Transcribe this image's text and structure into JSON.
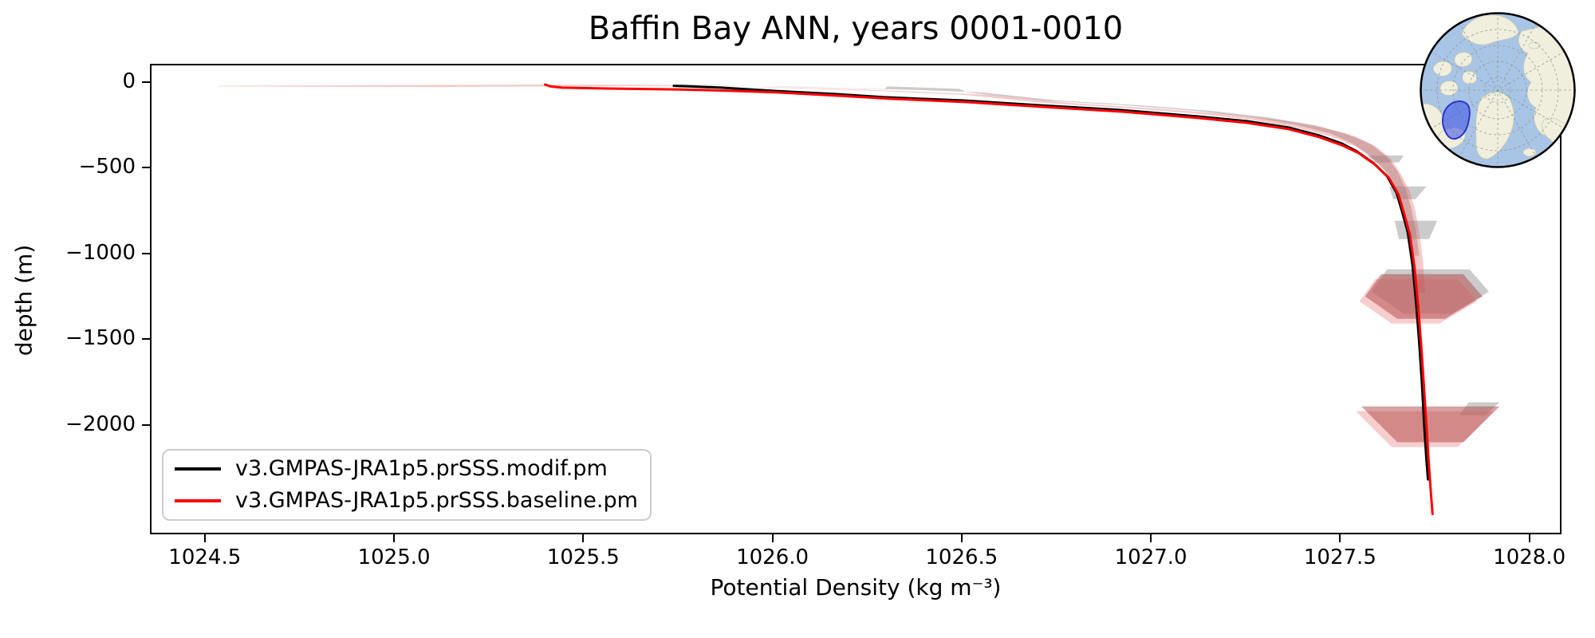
{
  "figure": {
    "title": "Baffin Bay ANN, years 0001-0010",
    "background_color": "#ffffff"
  },
  "chart_data": {
    "type": "line",
    "title": "Baffin Bay ANN, years 0001-0010",
    "xlabel": "Potential Density (kg m⁻³)",
    "ylabel": "depth (m)",
    "xlim": [
      1024.355,
      1028.085
    ],
    "ylim": [
      -2640,
      107
    ],
    "grid": false,
    "legend_position": "lower left",
    "xtick_values": [
      1024.5,
      1025.0,
      1025.5,
      1026.0,
      1026.5,
      1027.0,
      1027.5,
      1028.0
    ],
    "xtick_labels": [
      "1024.5",
      "1025.0",
      "1025.5",
      "1026.0",
      "1026.5",
      "1027.0",
      "1027.5",
      "1028.0"
    ],
    "ytick_values": [
      0,
      -500,
      -1000,
      -1500,
      -2000
    ],
    "ytick_labels": [
      "0",
      "−500",
      "−1000",
      "−1500",
      "−2000"
    ],
    "series": [
      {
        "name": "v3.GMPAS-JRA1p5.prSSS.modif.pm",
        "color": "#000000",
        "linewidth": 3,
        "points": [
          [
            1025.735,
            -12
          ],
          [
            1025.78,
            -16
          ],
          [
            1025.86,
            -23
          ],
          [
            1026.0,
            -42
          ],
          [
            1026.16,
            -60
          ],
          [
            1026.29,
            -79
          ],
          [
            1026.5,
            -98
          ],
          [
            1026.7,
            -126
          ],
          [
            1026.91,
            -153
          ],
          [
            1027.12,
            -191
          ],
          [
            1027.25,
            -219
          ],
          [
            1027.36,
            -256
          ],
          [
            1027.44,
            -302
          ],
          [
            1027.5,
            -349
          ],
          [
            1027.54,
            -395
          ],
          [
            1027.585,
            -465
          ],
          [
            1027.62,
            -540
          ],
          [
            1027.645,
            -637
          ],
          [
            1027.66,
            -749
          ],
          [
            1027.675,
            -870
          ],
          [
            1027.687,
            -1056
          ],
          [
            1027.697,
            -1290
          ],
          [
            1027.705,
            -1520
          ],
          [
            1027.712,
            -1750
          ],
          [
            1027.718,
            -1990
          ],
          [
            1027.724,
            -2200
          ],
          [
            1027.728,
            -2310
          ]
        ]
      },
      {
        "name": "v3.GMPAS-JRA1p5.prSSS.baseline.pm",
        "color": "#ff0000",
        "linewidth": 3,
        "points": [
          [
            1025.395,
            -5
          ],
          [
            1025.41,
            -16
          ],
          [
            1025.44,
            -23
          ],
          [
            1025.56,
            -28
          ],
          [
            1025.74,
            -33
          ],
          [
            1025.87,
            -40
          ],
          [
            1026.01,
            -51
          ],
          [
            1026.17,
            -70
          ],
          [
            1026.31,
            -88
          ],
          [
            1026.51,
            -107
          ],
          [
            1026.71,
            -135
          ],
          [
            1026.92,
            -163
          ],
          [
            1027.12,
            -200
          ],
          [
            1027.25,
            -228
          ],
          [
            1027.36,
            -265
          ],
          [
            1027.44,
            -311
          ],
          [
            1027.5,
            -358
          ],
          [
            1027.545,
            -405
          ],
          [
            1027.59,
            -475
          ],
          [
            1027.625,
            -550
          ],
          [
            1027.65,
            -647
          ],
          [
            1027.665,
            -759
          ],
          [
            1027.68,
            -880
          ],
          [
            1027.692,
            -1066
          ],
          [
            1027.702,
            -1300
          ],
          [
            1027.71,
            -1530
          ],
          [
            1027.717,
            -1760
          ],
          [
            1027.724,
            -2000
          ],
          [
            1027.73,
            -2210
          ],
          [
            1027.736,
            -2400
          ],
          [
            1027.74,
            -2512
          ]
        ]
      }
    ],
    "uncertainty_patches": [
      {
        "series": "v3.GMPAS-JRA1p5.prSSS.modif.pm",
        "color": "rgba(130,130,130,0.42)",
        "points": [
          [
            1025.74,
            -2
          ],
          [
            1026.0,
            -16
          ],
          [
            1026.29,
            -33
          ],
          [
            1026.3,
            -16
          ],
          [
            1026.49,
            -30
          ],
          [
            1026.51,
            -51
          ],
          [
            1026.71,
            -98
          ],
          [
            1026.92,
            -125
          ],
          [
            1027.12,
            -160
          ],
          [
            1027.26,
            -195
          ],
          [
            1027.38,
            -240
          ],
          [
            1027.47,
            -290
          ],
          [
            1027.53,
            -350
          ],
          [
            1027.575,
            -420
          ],
          [
            1027.615,
            -510
          ],
          [
            1027.64,
            -610
          ],
          [
            1027.655,
            -720
          ],
          [
            1027.668,
            -840
          ],
          [
            1027.68,
            -1005
          ],
          [
            1027.705,
            -1005
          ],
          [
            1027.695,
            -840
          ],
          [
            1027.683,
            -720
          ],
          [
            1027.668,
            -610
          ],
          [
            1027.647,
            -510
          ],
          [
            1027.617,
            -420
          ],
          [
            1027.575,
            -350
          ],
          [
            1027.51,
            -290
          ],
          [
            1027.425,
            -240
          ],
          [
            1027.3,
            -195
          ],
          [
            1027.16,
            -160
          ],
          [
            1026.96,
            -125
          ],
          [
            1026.75,
            -98
          ],
          [
            1026.55,
            -51
          ],
          [
            1026.33,
            -33
          ],
          [
            1026.03,
            -16
          ],
          [
            1025.76,
            -7
          ]
        ]
      },
      {
        "series": "v3.GMPAS-JRA1p5.prSSS.modif.pm",
        "color": "rgba(130,130,130,0.42)",
        "points": [
          [
            1027.567,
            -419
          ],
          [
            1027.664,
            -419
          ],
          [
            1027.651,
            -460
          ],
          [
            1027.588,
            -460
          ]
        ]
      },
      {
        "series": "v3.GMPAS-JRA1p5.prSSS.modif.pm",
        "color": "rgba(130,130,130,0.42)",
        "points": [
          [
            1027.626,
            -600
          ],
          [
            1027.724,
            -600
          ],
          [
            1027.695,
            -674
          ],
          [
            1027.636,
            -674
          ]
        ]
      },
      {
        "series": "v3.GMPAS-JRA1p5.prSSS.modif.pm",
        "color": "rgba(130,130,130,0.42)",
        "points": [
          [
            1027.64,
            -800
          ],
          [
            1027.752,
            -800
          ],
          [
            1027.731,
            -907
          ],
          [
            1027.651,
            -907
          ]
        ]
      },
      {
        "series": "v3.GMPAS-JRA1p5.prSSS.modif.pm",
        "color": "rgba(130,130,130,0.42)",
        "points": [
          [
            1027.62,
            -1084
          ],
          [
            1027.838,
            -1084
          ],
          [
            1027.889,
            -1214
          ],
          [
            1027.79,
            -1344
          ],
          [
            1027.664,
            -1344
          ],
          [
            1027.579,
            -1214
          ]
        ]
      },
      {
        "series": "v3.GMPAS-JRA1p5.prSSS.modif.pm",
        "color": "rgba(130,130,130,0.42)",
        "points": [
          [
            1027.836,
            -1860
          ],
          [
            1027.917,
            -1860
          ],
          [
            1027.88,
            -1935
          ],
          [
            1027.81,
            -1935
          ]
        ]
      },
      {
        "series": "v3.GMPAS-JRA1p5.prSSS.baseline.pm",
        "color": "rgba(240,145,145,0.45)",
        "points": [
          [
            1027.589,
            -1140
          ],
          [
            1027.806,
            -1140
          ],
          [
            1027.857,
            -1270
          ],
          [
            1027.758,
            -1400
          ],
          [
            1027.632,
            -1400
          ],
          [
            1027.547,
            -1270
          ]
        ]
      },
      {
        "series": "v3.GMPAS-JRA1p5.prSSS.baseline.pm",
        "color": "rgba(240,145,145,0.45)",
        "points": [
          [
            1027.537,
            -1912
          ],
          [
            1027.902,
            -1912
          ],
          [
            1027.807,
            -2121
          ],
          [
            1027.632,
            -2121
          ]
        ]
      },
      {
        "series": "v3.GMPAS-JRA1p5.prSSS.baseline.pm",
        "color": "rgba(230,100,100,0.35)",
        "points": [
          [
            1024.53,
            -12
          ],
          [
            1025.1,
            -7
          ],
          [
            1025.4,
            -5
          ],
          [
            1025.74,
            -7
          ],
          [
            1026.0,
            -23
          ],
          [
            1026.29,
            -44
          ],
          [
            1026.5,
            -65
          ],
          [
            1026.71,
            -112
          ],
          [
            1026.92,
            -140
          ],
          [
            1027.12,
            -175
          ],
          [
            1027.26,
            -210
          ],
          [
            1027.38,
            -256
          ],
          [
            1027.47,
            -307
          ],
          [
            1027.535,
            -365
          ],
          [
            1027.585,
            -440
          ],
          [
            1027.625,
            -530
          ],
          [
            1027.65,
            -630
          ],
          [
            1027.667,
            -745
          ],
          [
            1027.68,
            -870
          ],
          [
            1027.69,
            -1040
          ],
          [
            1027.697,
            -1220
          ],
          [
            1027.72,
            -1220
          ],
          [
            1027.715,
            -1040
          ],
          [
            1027.705,
            -870
          ],
          [
            1027.695,
            -745
          ],
          [
            1027.68,
            -630
          ],
          [
            1027.657,
            -530
          ],
          [
            1027.63,
            -440
          ],
          [
            1027.59,
            -365
          ],
          [
            1027.535,
            -307
          ],
          [
            1027.45,
            -256
          ],
          [
            1027.33,
            -210
          ],
          [
            1027.19,
            -175
          ],
          [
            1026.98,
            -140
          ],
          [
            1026.78,
            -112
          ],
          [
            1026.57,
            -65
          ],
          [
            1026.35,
            -44
          ],
          [
            1026.06,
            -23
          ],
          [
            1025.78,
            -12
          ],
          [
            1025.4,
            -16
          ],
          [
            1025.1,
            -19
          ],
          [
            1024.53,
            -16
          ]
        ]
      },
      {
        "series": "v3.GMPAS-JRA1p5.prSSS.baseline.pm",
        "color": "rgba(175,70,70,0.5)",
        "points": [
          [
            1027.604,
            -1112
          ],
          [
            1027.821,
            -1112
          ],
          [
            1027.872,
            -1242
          ],
          [
            1027.773,
            -1372
          ],
          [
            1027.647,
            -1372
          ],
          [
            1027.562,
            -1242
          ]
        ]
      },
      {
        "series": "v3.GMPAS-JRA1p5.prSSS.baseline.pm",
        "color": "rgba(175,70,70,0.5)",
        "points": [
          [
            1027.552,
            -1884
          ],
          [
            1027.917,
            -1884
          ],
          [
            1027.822,
            -2093
          ],
          [
            1027.647,
            -2093
          ]
        ]
      }
    ]
  },
  "inset_map": {
    "description": "North polar stereographic locator map",
    "region_label": "Baffin Bay",
    "ocean_color": "#a8c5e6",
    "land_color": "#f0eedc",
    "land_edge_color": "#c8c6aa",
    "graticule_color": "#8f8f8f",
    "highlight_fill": "rgba(72,92,226,0.62)",
    "highlight_stroke": "#2a35cc",
    "border_color": "#000000"
  }
}
